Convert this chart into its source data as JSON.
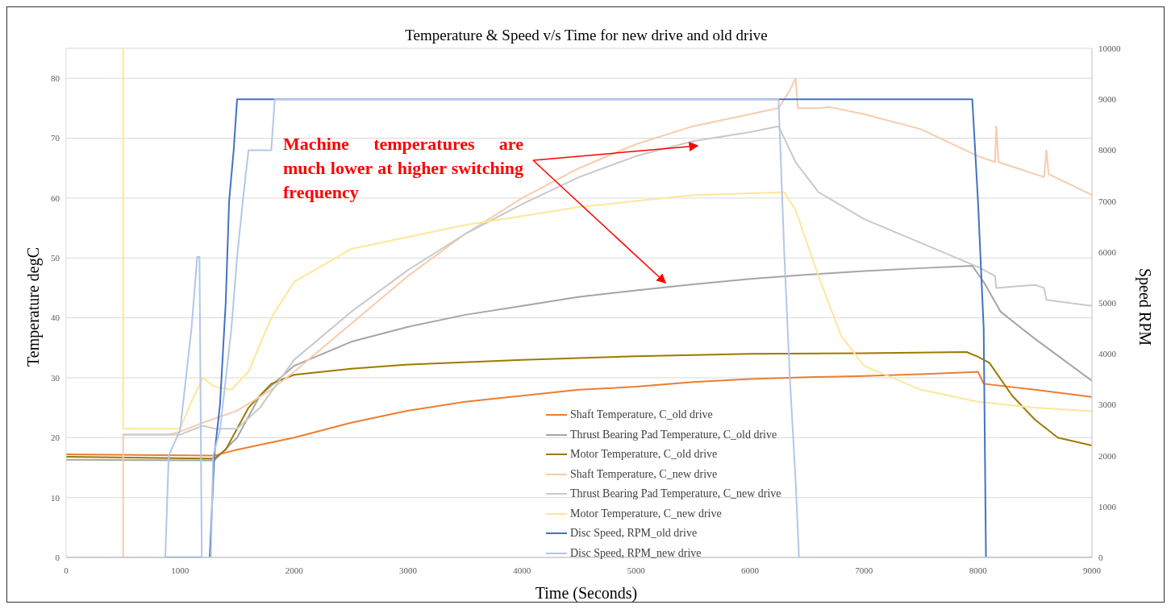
{
  "chart_data": {
    "type": "line",
    "title": "Temperature & Speed v/s Time for new drive and old drive",
    "xlabel": "Time (Seconds)",
    "ylabel": "Temperature degC",
    "y2label": "Speed RPM",
    "annotations": [
      "Machine temperatures are much lower at higher switching frequency"
    ],
    "xlim": [
      0,
      9000
    ],
    "xticks": [
      0,
      1000,
      2000,
      3000,
      4000,
      5000,
      6000,
      7000,
      8000,
      9000
    ],
    "ylim": [
      0,
      85
    ],
    "yticks": [
      0,
      10,
      20,
      30,
      40,
      50,
      60,
      70,
      80
    ],
    "y2lim": [
      0,
      10000
    ],
    "y2ticks": [
      0,
      1000,
      2000,
      3000,
      4000,
      5000,
      6000,
      7000,
      8000,
      9000,
      10000
    ],
    "grid": "y",
    "legend": "bottom",
    "series": [
      {
        "name": "Shaft Temperature, C_old drive",
        "color": "#ed7d31",
        "x": [
          0,
          1300,
          1400,
          1500,
          2000,
          2500,
          3000,
          3500,
          4000,
          4500,
          5000,
          5500,
          6000,
          6500,
          7000,
          7500,
          7900,
          8000,
          8050,
          8500,
          9000
        ],
        "values": [
          17.2,
          17,
          17.5,
          18,
          20,
          22.5,
          24.5,
          26,
          27,
          28,
          28.5,
          29.3,
          29.8,
          30.1,
          30.3,
          30.6,
          30.9,
          31,
          29,
          28,
          26.8
        ]
      },
      {
        "name": "Thrust Bearing Pad Temperature, C_old drive",
        "color": "#a5a5a5",
        "x": [
          0,
          1300,
          1500,
          1700,
          2000,
          2500,
          3000,
          3500,
          4000,
          4500,
          5000,
          5500,
          6000,
          6500,
          7000,
          7500,
          7950,
          8050,
          8200,
          8500,
          9000
        ],
        "values": [
          16.3,
          16.2,
          20,
          27,
          32,
          36,
          38.5,
          40.5,
          42,
          43.5,
          44.6,
          45.6,
          46.5,
          47.2,
          47.8,
          48.3,
          48.7,
          46,
          41,
          36.5,
          29.5
        ]
      },
      {
        "name": "Motor Temperature, C_old drive",
        "color": "#9c7a00",
        "x": [
          0,
          1300,
          1400,
          1600,
          1800,
          2000,
          2500,
          3000,
          4000,
          5000,
          6000,
          7000,
          7900,
          8000,
          8100,
          8300,
          8500,
          8700,
          9000
        ],
        "values": [
          16.8,
          16.5,
          18,
          25,
          29,
          30.5,
          31.5,
          32.2,
          33,
          33.6,
          34,
          34.1,
          34.3,
          33.5,
          32.5,
          27,
          23,
          20,
          18.7
        ]
      },
      {
        "name": "Shaft Temperature, C_new drive",
        "color": "#f8cbad",
        "x": [
          500,
          500,
          900,
          1000,
          1200,
          1500,
          1800,
          2000,
          2500,
          3000,
          3500,
          4000,
          4500,
          5000,
          5500,
          6000,
          6250,
          6350,
          6400,
          6420,
          6600,
          6700,
          7000,
          7500,
          8000,
          8150,
          8160,
          8180,
          8500,
          8580,
          8600,
          8620,
          9000
        ],
        "values": [
          0,
          20.5,
          20.5,
          21,
          22.5,
          24.5,
          28,
          31,
          39,
          47,
          54,
          60,
          65,
          69,
          72,
          74,
          75,
          78,
          80,
          75,
          75,
          75.2,
          74,
          71.5,
          67,
          66,
          72,
          66,
          64,
          63.5,
          68,
          64,
          60.5
        ]
      },
      {
        "name": "Thrust Bearing Pad Temperature, C_new drive",
        "color": "#c9c9c9",
        "x": [
          500,
          1000,
          1200,
          1300,
          1500,
          1700,
          2000,
          2500,
          3000,
          3500,
          4000,
          4500,
          5000,
          5500,
          6000,
          6250,
          6400,
          6600,
          7000,
          7500,
          8000,
          8150,
          8160,
          8500,
          8580,
          8600,
          9000
        ],
        "values": [
          20.5,
          20.5,
          22,
          21.5,
          21.5,
          25,
          33,
          41,
          48,
          54,
          59,
          63.5,
          67,
          69.5,
          71,
          72,
          66,
          61,
          56.5,
          52.5,
          48.5,
          47,
          45,
          45.5,
          45,
          43,
          42
        ]
      },
      {
        "name": "Motor Temperature, C_new drive",
        "color": "#ffe699",
        "x": [
          500,
          500,
          1000,
          1100,
          1200,
          1300,
          1450,
          1600,
          1800,
          2000,
          2500,
          3000,
          3500,
          4000,
          4500,
          5000,
          5500,
          6000,
          6300,
          6400,
          6600,
          6800,
          7000,
          7500,
          8000,
          8500,
          9000
        ],
        "values": [
          85,
          21.5,
          21.5,
          26,
          30,
          28.5,
          28,
          31,
          40,
          46,
          51.5,
          53.5,
          55.5,
          57,
          58.5,
          59.5,
          60.5,
          60.8,
          61,
          58,
          47,
          37,
          32,
          28,
          26,
          25,
          24.4
        ]
      },
      {
        "name": "Disc Speed, RPM_old drive",
        "color": "#4472c4",
        "axis": "y2",
        "x": [
          0,
          1260,
          1300,
          1350,
          1400,
          1430,
          1470,
          1500,
          7950,
          8000,
          8050,
          8070,
          9000
        ],
        "values": [
          0,
          0,
          2000,
          3000,
          5000,
          7000,
          8000,
          9000,
          9000,
          7000,
          4500,
          0,
          0
        ]
      },
      {
        "name": "Disc Speed, RPM_new drive",
        "color": "#b4c7e7",
        "axis": "y2",
        "x": [
          0,
          870,
          900,
          1000,
          1050,
          1100,
          1150,
          1170,
          1190,
          1270,
          1290,
          1350,
          1400,
          1450,
          1500,
          1550,
          1600,
          1800,
          1830,
          6250,
          6300,
          6350,
          6400,
          6430,
          9000
        ],
        "values": [
          0,
          0,
          2000,
          2500,
          3500,
          4500,
          5900,
          5900,
          0,
          0,
          2000,
          2500,
          3500,
          4500,
          5900,
          7000,
          8000,
          8000,
          9000,
          9000,
          6000,
          3500,
          1500,
          0,
          0
        ]
      }
    ]
  }
}
